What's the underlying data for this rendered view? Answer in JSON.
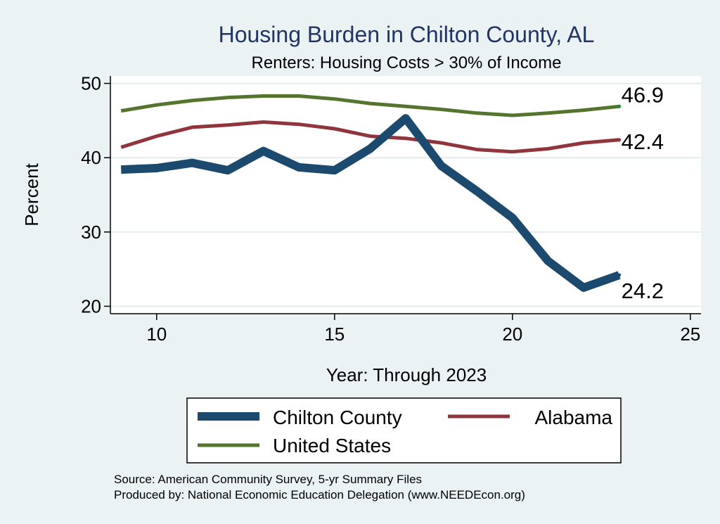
{
  "chart_data": {
    "type": "line",
    "title": "Housing Burden in Chilton County, AL",
    "subtitle": "Renters: Housing Costs > 30% of Income",
    "xlabel": "Year: Through 2023",
    "ylabel": "Percent",
    "xlim": [
      8.7,
      25.3
    ],
    "ylim": [
      19,
      51
    ],
    "xticks": [
      10,
      15,
      20,
      25
    ],
    "yticks": [
      20,
      30,
      40,
      50
    ],
    "grid": true,
    "legend_position": "bottom",
    "x": [
      9,
      10,
      11,
      12,
      13,
      14,
      15,
      16,
      17,
      18,
      19,
      20,
      21,
      22,
      23
    ],
    "series": [
      {
        "name": "Chilton County",
        "color": "#1c4a6e",
        "values": [
          38.4,
          38.6,
          39.3,
          38.3,
          40.9,
          38.7,
          38.3,
          41.2,
          45.3,
          38.9,
          35.5,
          31.9,
          26.1,
          22.5,
          24.2
        ],
        "end_label": "24.2"
      },
      {
        "name": "Alabama",
        "color": "#90353b",
        "values": [
          41.4,
          42.9,
          44.1,
          44.4,
          44.8,
          44.5,
          43.9,
          42.9,
          42.6,
          42.0,
          41.1,
          40.8,
          41.2,
          42.0,
          42.4
        ],
        "end_label": "42.4"
      },
      {
        "name": "United States",
        "color": "#55752f",
        "values": [
          46.3,
          47.1,
          47.7,
          48.1,
          48.3,
          48.3,
          47.9,
          47.3,
          46.9,
          46.5,
          46.0,
          45.7,
          46.0,
          46.4,
          46.9
        ],
        "end_label": "46.9"
      }
    ]
  },
  "footer": {
    "source": "Source: American Community Survey, 5-yr Summary Files",
    "producer": "Produced by: National Economic Education Delegation (www.NEEDEcon.org)"
  }
}
